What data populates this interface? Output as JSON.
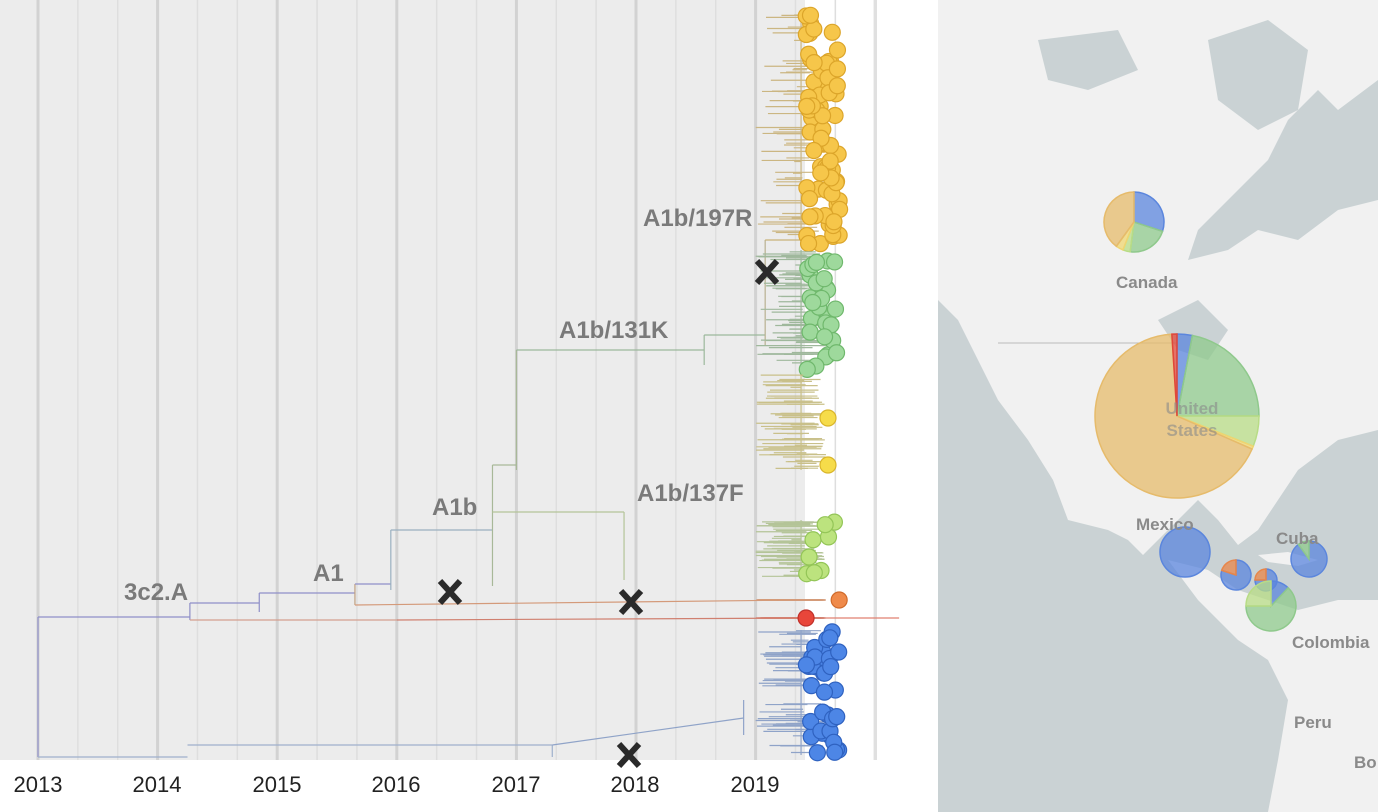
{
  "tree": {
    "axis_years": [
      "2013",
      "2014",
      "2015",
      "2016",
      "2017",
      "2018",
      "2019"
    ],
    "clade_labels": [
      "A1b/197R",
      "A1b/131K",
      "A1b/137F",
      "A1b",
      "A1",
      "3c2.A"
    ],
    "mutation_markers": [
      "x-mark",
      "x-mark",
      "x-mark",
      "x-mark"
    ],
    "tip_clusters": [
      {
        "name": "yellow-main",
        "color": "#f6c64a",
        "stroke": "#dca52a",
        "branch": "#cbb682",
        "count": 70
      },
      {
        "name": "green",
        "color": "#9ed99c",
        "stroke": "#6fb86c",
        "branch": "#9fb89c",
        "count": 28
      },
      {
        "name": "yellow-sparse",
        "color": "#f6dc4a",
        "stroke": "#d9b52a",
        "branch": "#c9c08a",
        "count": 2
      },
      {
        "name": "light-green",
        "color": "#bce37e",
        "stroke": "#93c557",
        "branch": "#b4c498",
        "count": 8
      },
      {
        "name": "orange",
        "color": "#ef8a4a",
        "stroke": "#d06a2a",
        "branch": "#d49a7a",
        "count": 1
      },
      {
        "name": "red",
        "color": "#e8463a",
        "stroke": "#c0302a",
        "branch": "#d48070",
        "count": 1
      },
      {
        "name": "blue",
        "color": "#4d86e6",
        "stroke": "#2f62c0",
        "branch": "#8fa3c8",
        "count": 34
      }
    ]
  },
  "map": {
    "labels": [
      "Canada",
      "United States",
      "Mexico",
      "Cuba",
      "Colombia",
      "Peru",
      "Bo"
    ],
    "colors": {
      "tan": "#e6bb6b",
      "blue": "#5b86dd",
      "green": "#8fc98c",
      "lightgreen": "#b8dc86",
      "yellow": "#efd570",
      "red": "#e0473a",
      "orange": "#e8864a"
    },
    "pies": [
      {
        "name": "canada",
        "slices": [
          {
            "c": "blue",
            "v": 30
          },
          {
            "c": "green",
            "v": 22
          },
          {
            "c": "lightgreen",
            "v": 4
          },
          {
            "c": "yellow",
            "v": 4
          },
          {
            "c": "tan",
            "v": 40
          }
        ]
      },
      {
        "name": "united-states",
        "slices": [
          {
            "c": "blue",
            "v": 3
          },
          {
            "c": "green",
            "v": 22
          },
          {
            "c": "lightgreen",
            "v": 6
          },
          {
            "c": "yellow",
            "v": 0.6
          },
          {
            "c": "tan",
            "v": 67.4
          },
          {
            "c": "red",
            "v": 1
          }
        ]
      },
      {
        "name": "mexico",
        "slices": [
          {
            "c": "blue",
            "v": 100
          }
        ]
      },
      {
        "name": "guatemala",
        "slices": [
          {
            "c": "blue",
            "v": 80
          },
          {
            "c": "orange",
            "v": 20
          }
        ]
      },
      {
        "name": "honduras",
        "slices": [
          {
            "c": "blue",
            "v": 75
          },
          {
            "c": "orange",
            "v": 25
          }
        ]
      },
      {
        "name": "panama",
        "slices": [
          {
            "c": "blue",
            "v": 12
          },
          {
            "c": "green",
            "v": 63
          },
          {
            "c": "lightgreen",
            "v": 25
          }
        ]
      },
      {
        "name": "cuba",
        "slices": [
          {
            "c": "blue",
            "v": 90
          },
          {
            "c": "green",
            "v": 10
          }
        ]
      }
    ]
  }
}
